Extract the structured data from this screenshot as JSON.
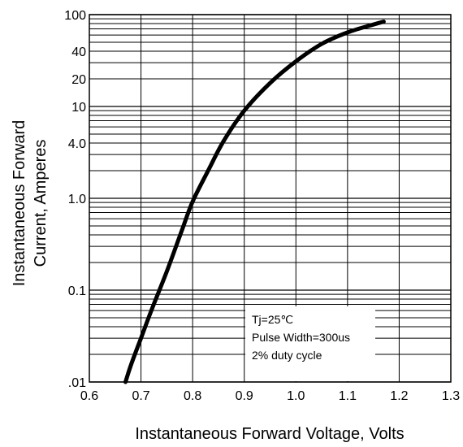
{
  "chart_data": {
    "type": "line",
    "title": "",
    "xlabel": "Instantaneous Forward Voltage, Volts",
    "ylabel": [
      "Instantaneous Forward",
      "Current, Amperes"
    ],
    "x_scale": "linear",
    "y_scale": "log",
    "xlim": [
      0.6,
      1.3
    ],
    "ylim": [
      0.01,
      100
    ],
    "grid": true,
    "x_ticks": [
      {
        "value": 0.6,
        "label": "0.6"
      },
      {
        "value": 0.7,
        "label": "0.7"
      },
      {
        "value": 0.8,
        "label": "0.8"
      },
      {
        "value": 0.9,
        "label": "0.9"
      },
      {
        "value": 1.0,
        "label": "1.0"
      },
      {
        "value": 1.1,
        "label": "1.1"
      },
      {
        "value": 1.2,
        "label": "1.2"
      },
      {
        "value": 1.3,
        "label": "1.3"
      }
    ],
    "y_ticks": [
      {
        "value": 100,
        "label": "100"
      },
      {
        "value": 40,
        "label": "40"
      },
      {
        "value": 20,
        "label": "20"
      },
      {
        "value": 10,
        "label": "10"
      },
      {
        "value": 4,
        "label": "4.0"
      },
      {
        "value": 1,
        "label": "1.0"
      },
      {
        "value": 0.1,
        "label": "0.1"
      },
      {
        "value": 0.01,
        "label": ".01"
      }
    ],
    "series": [
      {
        "x": [
          0.67,
          0.68,
          0.7,
          0.72,
          0.75,
          0.78,
          0.8,
          0.83,
          0.86,
          0.9,
          0.95,
          1.0,
          1.05,
          1.1,
          1.15,
          1.17
        ],
        "y": [
          0.01,
          0.015,
          0.03,
          0.06,
          0.16,
          0.46,
          0.92,
          2.0,
          4.2,
          9.0,
          18.0,
          31.0,
          48.0,
          64.0,
          78.0,
          84.0
        ]
      }
    ],
    "annotation": [
      "Tj=25℃",
      "Pulse Width=300us",
      "2% duty cycle"
    ]
  }
}
